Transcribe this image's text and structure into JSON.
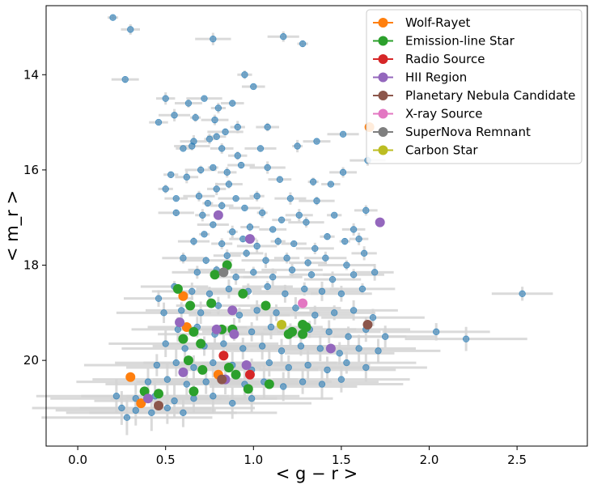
{
  "chart_data": {
    "type": "scatter",
    "xlabel": "< g − r >",
    "ylabel": "< m_r >",
    "xlim": [
      -0.18,
      2.9
    ],
    "ylim": [
      21.8,
      12.55
    ],
    "y_inverted": true,
    "x_ticks": [
      0.0,
      0.5,
      1.0,
      1.5,
      2.0,
      2.5
    ],
    "x_tick_labels": [
      "0.0",
      "0.5",
      "1.0",
      "1.5",
      "2.0",
      "2.5"
    ],
    "y_ticks": [
      14,
      16,
      18,
      20
    ],
    "y_tick_labels": [
      "14",
      "16",
      "18",
      "20"
    ],
    "grid": false,
    "legend_position": "top-right",
    "background_points": {
      "color": "#1f77b4",
      "errorbar_color": "#d3d3d3",
      "points": [
        [
          0.2,
          12.8
        ],
        [
          0.3,
          13.05
        ],
        [
          0.27,
          14.1
        ],
        [
          0.77,
          13.25
        ],
        [
          0.95,
          14.0
        ],
        [
          1.0,
          14.25
        ],
        [
          1.17,
          13.2
        ],
        [
          1.28,
          13.35
        ],
        [
          0.5,
          14.5
        ],
        [
          0.63,
          14.6
        ],
        [
          0.72,
          14.5
        ],
        [
          0.8,
          14.7
        ],
        [
          0.88,
          14.6
        ],
        [
          0.55,
          14.85
        ],
        [
          0.67,
          14.9
        ],
        [
          0.46,
          15.0
        ],
        [
          0.78,
          14.95
        ],
        [
          0.84,
          15.2
        ],
        [
          0.91,
          15.1
        ],
        [
          1.08,
          15.1
        ],
        [
          1.51,
          15.25
        ],
        [
          0.75,
          15.35
        ],
        [
          0.79,
          15.3
        ],
        [
          0.66,
          15.4
        ],
        [
          0.65,
          15.5
        ],
        [
          0.6,
          15.55
        ],
        [
          0.82,
          15.55
        ],
        [
          1.04,
          15.55
        ],
        [
          1.25,
          15.5
        ],
        [
          0.91,
          15.7
        ],
        [
          1.36,
          15.4
        ],
        [
          1.65,
          15.8
        ],
        [
          0.53,
          16.1
        ],
        [
          0.62,
          16.15
        ],
        [
          0.7,
          16.0
        ],
        [
          0.77,
          15.95
        ],
        [
          0.85,
          16.05
        ],
        [
          0.93,
          15.9
        ],
        [
          1.08,
          15.95
        ],
        [
          0.5,
          16.4
        ],
        [
          0.56,
          16.6
        ],
        [
          0.69,
          16.55
        ],
        [
          0.74,
          16.7
        ],
        [
          0.79,
          16.4
        ],
        [
          0.86,
          16.3
        ],
        [
          0.9,
          16.6
        ],
        [
          1.02,
          16.55
        ],
        [
          1.15,
          16.2
        ],
        [
          1.21,
          16.6
        ],
        [
          1.34,
          16.25
        ],
        [
          1.44,
          16.3
        ],
        [
          1.51,
          16.05
        ],
        [
          0.56,
          16.9
        ],
        [
          0.71,
          16.95
        ],
        [
          0.82,
          16.75
        ],
        [
          0.95,
          16.8
        ],
        [
          1.05,
          16.9
        ],
        [
          1.16,
          17.05
        ],
        [
          1.26,
          16.95
        ],
        [
          1.36,
          16.65
        ],
        [
          1.46,
          16.95
        ],
        [
          1.64,
          16.85
        ],
        [
          0.77,
          17.15
        ],
        [
          0.88,
          17.3
        ],
        [
          0.98,
          17.2
        ],
        [
          1.11,
          17.25
        ],
        [
          1.3,
          17.1
        ],
        [
          1.42,
          17.4
        ],
        [
          1.57,
          17.25
        ],
        [
          0.66,
          17.5
        ],
        [
          0.72,
          17.35
        ],
        [
          0.82,
          17.55
        ],
        [
          0.94,
          17.45
        ],
        [
          1.02,
          17.6
        ],
        [
          1.14,
          17.5
        ],
        [
          1.23,
          17.55
        ],
        [
          1.35,
          17.65
        ],
        [
          1.52,
          17.5
        ],
        [
          1.6,
          17.45
        ],
        [
          0.6,
          17.85
        ],
        [
          0.73,
          17.9
        ],
        [
          0.85,
          17.8
        ],
        [
          0.96,
          17.75
        ],
        [
          1.07,
          17.9
        ],
        [
          1.19,
          17.85
        ],
        [
          1.31,
          17.95
        ],
        [
          1.41,
          17.85
        ],
        [
          1.53,
          18.0
        ],
        [
          1.63,
          17.75
        ],
        [
          0.68,
          18.15
        ],
        [
          0.79,
          18.1
        ],
        [
          0.9,
          18.25
        ],
        [
          1.0,
          18.15
        ],
        [
          1.11,
          18.25
        ],
        [
          1.22,
          18.1
        ],
        [
          1.33,
          18.2
        ],
        [
          1.45,
          18.3
        ],
        [
          1.57,
          18.2
        ],
        [
          1.69,
          18.15
        ],
        [
          0.46,
          18.7
        ],
        [
          0.55,
          18.45
        ],
        [
          0.65,
          18.55
        ],
        [
          0.75,
          18.6
        ],
        [
          0.86,
          18.5
        ],
        [
          0.97,
          18.55
        ],
        [
          1.08,
          18.45
        ],
        [
          1.18,
          18.6
        ],
        [
          1.29,
          18.5
        ],
        [
          1.39,
          18.55
        ],
        [
          1.5,
          18.6
        ],
        [
          1.62,
          18.5
        ],
        [
          0.49,
          19.0
        ],
        [
          0.59,
          18.95
        ],
        [
          0.7,
          19.0
        ],
        [
          0.8,
          18.85
        ],
        [
          0.92,
          19.05
        ],
        [
          1.02,
          18.95
        ],
        [
          1.13,
          19.0
        ],
        [
          1.24,
          18.9
        ],
        [
          1.35,
          19.05
        ],
        [
          1.46,
          19.0
        ],
        [
          1.57,
          18.95
        ],
        [
          1.68,
          19.1
        ],
        [
          0.57,
          19.35
        ],
        [
          0.68,
          19.3
        ],
        [
          0.78,
          19.45
        ],
        [
          0.89,
          19.35
        ],
        [
          0.99,
          19.4
        ],
        [
          1.1,
          19.3
        ],
        [
          1.21,
          19.45
        ],
        [
          1.32,
          19.35
        ],
        [
          1.43,
          19.4
        ],
        [
          1.54,
          19.5
        ],
        [
          1.64,
          19.35
        ],
        [
          1.75,
          19.5
        ],
        [
          2.04,
          19.4
        ],
        [
          2.21,
          19.55
        ],
        [
          2.53,
          18.6
        ],
        [
          0.5,
          19.65
        ],
        [
          0.61,
          19.75
        ],
        [
          0.72,
          19.7
        ],
        [
          0.83,
          19.65
        ],
        [
          0.94,
          19.75
        ],
        [
          1.05,
          19.7
        ],
        [
          1.16,
          19.8
        ],
        [
          1.27,
          19.7
        ],
        [
          1.38,
          19.75
        ],
        [
          1.49,
          19.85
        ],
        [
          1.6,
          19.75
        ],
        [
          1.71,
          19.8
        ],
        [
          0.45,
          20.1
        ],
        [
          0.56,
          20.05
        ],
        [
          0.66,
          20.15
        ],
        [
          0.77,
          20.05
        ],
        [
          0.88,
          20.1
        ],
        [
          0.99,
          20.2
        ],
        [
          1.09,
          20.05
        ],
        [
          1.2,
          20.15
        ],
        [
          1.31,
          20.1
        ],
        [
          1.42,
          20.2
        ],
        [
          1.53,
          20.05
        ],
        [
          1.64,
          20.15
        ],
        [
          0.4,
          20.45
        ],
        [
          0.51,
          20.4
        ],
        [
          0.62,
          20.5
        ],
        [
          0.73,
          20.45
        ],
        [
          0.84,
          20.4
        ],
        [
          0.95,
          20.5
        ],
        [
          1.06,
          20.45
        ],
        [
          1.17,
          20.55
        ],
        [
          1.28,
          20.45
        ],
        [
          1.39,
          20.5
        ],
        [
          1.5,
          20.4
        ],
        [
          0.22,
          20.75
        ],
        [
          0.33,
          20.8
        ],
        [
          0.44,
          20.75
        ],
        [
          0.55,
          20.85
        ],
        [
          0.66,
          20.8
        ],
        [
          0.77,
          20.75
        ],
        [
          0.88,
          20.9
        ],
        [
          0.99,
          20.8
        ],
        [
          0.25,
          21.0
        ],
        [
          0.33,
          21.05
        ],
        [
          0.42,
          21.1
        ],
        [
          0.51,
          21.0
        ],
        [
          0.6,
          21.1
        ],
        [
          0.28,
          21.2
        ]
      ]
    },
    "series": [
      {
        "name": "Wolf-Rayet",
        "color": "#ff7f0e",
        "points": [
          [
            0.3,
            20.35
          ],
          [
            0.36,
            20.9
          ],
          [
            0.6,
            18.65
          ],
          [
            0.62,
            19.3
          ],
          [
            0.8,
            20.3
          ],
          [
            1.66,
            15.1
          ]
        ]
      },
      {
        "name": "Emission-line Star",
        "color": "#2ca02c",
        "points": [
          [
            0.38,
            20.65
          ],
          [
            0.46,
            20.7
          ],
          [
            0.57,
            18.5
          ],
          [
            0.6,
            19.55
          ],
          [
            0.63,
            20.0
          ],
          [
            0.64,
            18.85
          ],
          [
            0.66,
            19.4
          ],
          [
            0.66,
            20.65
          ],
          [
            0.7,
            19.65
          ],
          [
            0.71,
            20.2
          ],
          [
            0.76,
            18.8
          ],
          [
            0.78,
            18.2
          ],
          [
            0.82,
            19.35
          ],
          [
            0.85,
            18.0
          ],
          [
            0.86,
            20.15
          ],
          [
            0.88,
            19.35
          ],
          [
            0.9,
            20.3
          ],
          [
            0.94,
            18.6
          ],
          [
            0.97,
            20.6
          ],
          [
            1.07,
            18.85
          ],
          [
            1.09,
            20.5
          ],
          [
            1.2,
            19.45
          ],
          [
            1.22,
            19.4
          ],
          [
            1.28,
            19.25
          ],
          [
            1.3,
            19.3
          ],
          [
            1.28,
            19.45
          ]
        ]
      },
      {
        "name": "Radio Source",
        "color": "#d62728",
        "points": [
          [
            0.83,
            19.9
          ],
          [
            0.98,
            20.3
          ]
        ]
      },
      {
        "name": "HII Region",
        "color": "#9467bd",
        "points": [
          [
            0.4,
            20.8
          ],
          [
            0.58,
            19.2
          ],
          [
            0.6,
            20.25
          ],
          [
            0.79,
            19.35
          ],
          [
            0.8,
            16.95
          ],
          [
            0.84,
            20.4
          ],
          [
            0.88,
            18.95
          ],
          [
            0.89,
            19.45
          ],
          [
            0.96,
            20.1
          ],
          [
            0.98,
            17.45
          ],
          [
            1.44,
            19.75
          ],
          [
            1.72,
            17.1
          ]
        ]
      },
      {
        "name": "Planetary Nebula Candidate",
        "color": "#8c564b",
        "points": [
          [
            0.46,
            20.95
          ],
          [
            0.82,
            20.4
          ],
          [
            1.65,
            19.25
          ]
        ]
      },
      {
        "name": "X-ray Source",
        "color": "#e377c2",
        "points": [
          [
            1.28,
            18.8
          ]
        ]
      },
      {
        "name": "SuperNova Remnant",
        "color": "#7f7f7f",
        "points": [
          [
            0.83,
            18.15
          ]
        ]
      },
      {
        "name": "Carbon Star",
        "color": "#bcbd22",
        "points": [
          [
            1.16,
            19.25
          ]
        ]
      }
    ]
  }
}
